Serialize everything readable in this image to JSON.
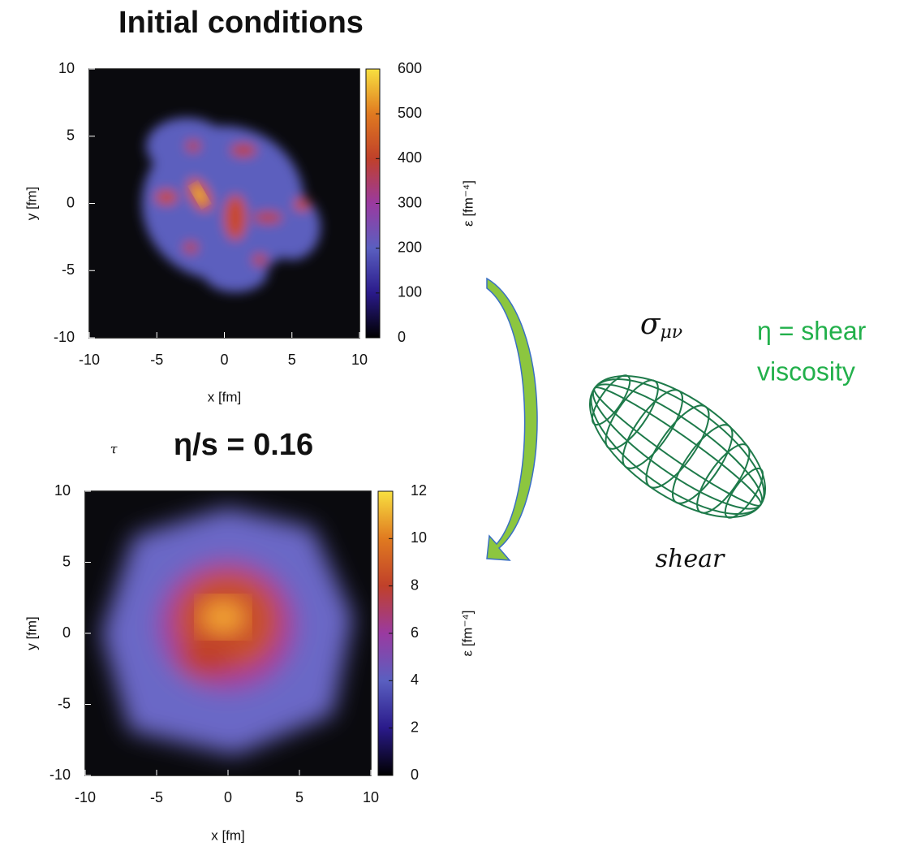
{
  "chart_data": [
    {
      "type": "heatmap",
      "title": "Initial conditions",
      "xlabel": "x [fm]",
      "ylabel": "y [fm]",
      "colorbar_label": "ε [fm⁻⁴]",
      "xlim": [
        -10,
        10
      ],
      "ylim": [
        -10,
        10
      ],
      "xticks": [
        -10,
        -5,
        0,
        5,
        10
      ],
      "yticks": [
        -10,
        -5,
        0,
        5,
        10
      ],
      "clim": [
        0,
        600
      ],
      "cticks": [
        0,
        100,
        200,
        300,
        400,
        500,
        600
      ],
      "colormap": [
        "#000000",
        "#2a1a8a",
        "#5a5fc0",
        "#9a3aa0",
        "#c0402a",
        "#e07a20",
        "#f8e040"
      ]
    },
    {
      "type": "heatmap",
      "title": "η/s = 0.16",
      "annotation": "τ",
      "xlabel": "x [fm]",
      "ylabel": "y [fm]",
      "colorbar_label": "ε [fm⁻⁴]",
      "xlim": [
        -10,
        10
      ],
      "ylim": [
        -10,
        10
      ],
      "xticks": [
        -10,
        -5,
        0,
        5,
        10
      ],
      "yticks": [
        -10,
        -5,
        0,
        5,
        10
      ],
      "clim": [
        0,
        12
      ],
      "cticks": [
        0,
        2,
        4,
        6,
        8,
        10,
        12
      ],
      "colormap": [
        "#000000",
        "#2a1a8a",
        "#5a5fc0",
        "#9a3aa0",
        "#c0402a",
        "#e07a20",
        "#f8e040"
      ]
    }
  ],
  "diagram": {
    "symbol": "σ",
    "indices": "μν",
    "caption": "shear",
    "definition": [
      "η = shear",
      "viscosity"
    ]
  }
}
